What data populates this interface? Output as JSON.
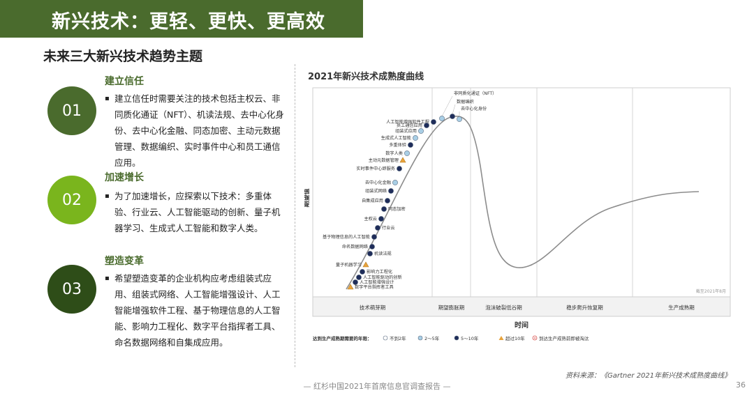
{
  "header": {
    "title": "新兴技术：更轻、更快、更高效"
  },
  "subtitle": "未来三大新兴技术趋势主题",
  "items": [
    {
      "number": "01",
      "heading": "建立信任",
      "color": "#4a6b2d",
      "body": "建立信任时需要关注的技术包括主权云、非同质化通证（NFT）、机读法规、去中心化身份、去中心化金融、同态加密、主动元数据管理、数据编织、实时事件中心和员工通信应用。"
    },
    {
      "number": "02",
      "heading": "加速增长",
      "color": "#7ab51d",
      "body": "为了加速增长，应探索以下技术：多重体验、行业云、人工智能驱动的创新、量子机器学习、生成式人工智能和数字人类。"
    },
    {
      "number": "03",
      "heading": "塑造变革",
      "color": "#2e4d18",
      "body": "希望塑造变革的企业机构应考虑组装式应用、组装式网络、人工智能增强设计、人工智能增强软件工程、基于物理信息的人工智能、影响力工程化、数字平台指挥者工具、命名数据网络和自集成应用。"
    }
  ],
  "chart": {
    "title": "2021年新兴技术成熟度曲线",
    "ylabel": "期望值",
    "xlabel": "时间",
    "phases": [
      "技术萌芽期",
      "期望膨胀期",
      "泡沫破裂低谷期",
      "稳步爬升恢复期",
      "生产成熟期"
    ],
    "copyright": "截至2021年8月",
    "legend_title": "达到生产成熟期需要的年限：",
    "legend": [
      {
        "label": "不到2年",
        "shape": "circle-open",
        "color": "#ffffff"
      },
      {
        "label": "2～5年",
        "shape": "circle-light",
        "color": "#a9cfe6"
      },
      {
        "label": "5～10年",
        "shape": "circle-dark",
        "color": "#1f2d5a"
      },
      {
        "label": "超过10年",
        "shape": "triangle",
        "color": "#e8a33c"
      },
      {
        "label": "到达生产成熟前即被淘汰",
        "shape": "cross",
        "color": "#d9534f"
      }
    ]
  },
  "chart_data": {
    "type": "scatter",
    "title": "2021年新兴技术成熟度曲线",
    "xlabel": "时间",
    "ylabel": "期望值",
    "categories": [
      "技术萌芽期",
      "期望膨胀期",
      "泡沫破裂低谷期",
      "稳步爬升恢复期",
      "生产成熟期"
    ],
    "points": [
      {
        "name": "非同质化通证（NFT）",
        "category": "期望膨胀期",
        "status": "2～5年",
        "side": "right"
      },
      {
        "name": "数据编织",
        "category": "期望膨胀期",
        "status": "5～10年",
        "side": "right"
      },
      {
        "name": "去中心化身份",
        "category": "期望膨胀期",
        "status": "2～5年",
        "side": "right"
      },
      {
        "name": "人工智能增强软件工程",
        "category": "技术萌芽期",
        "status": "5～10年",
        "side": "left"
      },
      {
        "name": "员工通信应用",
        "category": "技术萌芽期",
        "status": "5～10年",
        "side": "left"
      },
      {
        "name": "组装式应用",
        "category": "技术萌芽期",
        "status": "2～5年",
        "side": "left"
      },
      {
        "name": "生成式人工智能",
        "category": "技术萌芽期",
        "status": "2～5年",
        "side": "left"
      },
      {
        "name": "多重体验",
        "category": "技术萌芽期",
        "status": "5～10年",
        "side": "left"
      },
      {
        "name": "数字人类",
        "category": "技术萌芽期",
        "status": "2～5年",
        "side": "left"
      },
      {
        "name": "主动元数据管理",
        "category": "技术萌芽期",
        "status": "超过10年",
        "side": "left"
      },
      {
        "name": "实时事件中心即服务",
        "category": "技术萌芽期",
        "status": "5～10年",
        "side": "left"
      },
      {
        "name": "去中心化金融",
        "category": "技术萌芽期",
        "status": "2～5年",
        "side": "left"
      },
      {
        "name": "组装式网络",
        "category": "技术萌芽期",
        "status": "5～10年",
        "side": "left"
      },
      {
        "name": "自集成应用",
        "category": "技术萌芽期",
        "status": "5～10年",
        "side": "left"
      },
      {
        "name": "同态加密",
        "category": "技术萌芽期",
        "status": "5～10年",
        "side": "right"
      },
      {
        "name": "主权云",
        "category": "技术萌芽期",
        "status": "5～10年",
        "side": "left"
      },
      {
        "name": "行业云",
        "category": "技术萌芽期",
        "status": "5～10年",
        "side": "right"
      },
      {
        "name": "基于物理信息的人工智能",
        "category": "技术萌芽期",
        "status": "5～10年",
        "side": "left"
      },
      {
        "name": "命名数据网络",
        "category": "技术萌芽期",
        "status": "5～10年",
        "side": "left"
      },
      {
        "name": "机读法规",
        "category": "技术萌芽期",
        "status": "5～10年",
        "side": "right"
      },
      {
        "name": "量子机器学习",
        "category": "技术萌芽期",
        "status": "超过10年",
        "side": "left"
      },
      {
        "name": "影响力工程化",
        "category": "技术萌芽期",
        "status": "5～10年",
        "side": "right"
      },
      {
        "name": "人工智能驱动的创新",
        "category": "技术萌芽期",
        "status": "5～10年",
        "side": "right"
      },
      {
        "name": "人工智能增强设计",
        "category": "技术萌芽期",
        "status": "5～10年",
        "side": "right"
      },
      {
        "name": "数字平台指挥者工具",
        "category": "技术萌芽期",
        "status": "超过10年",
        "side": "right"
      }
    ]
  },
  "source": "资料来源：《Gartner 2021年新兴技术成熟度曲线》",
  "footer": "— 红杉中国2021年首席信息官调查报告 —",
  "page_number": "36"
}
